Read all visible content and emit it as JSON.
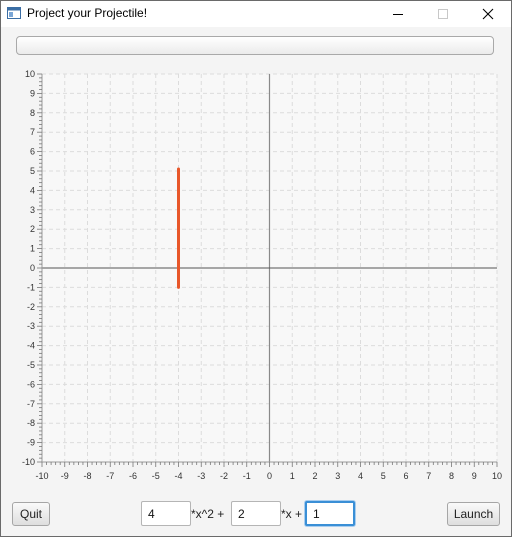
{
  "window": {
    "title": "Project your Projectile!",
    "icons": {
      "app": "app-window-icon",
      "minimize": "minimize-icon",
      "maximize": "maximize-icon",
      "close": "close-icon"
    }
  },
  "progress": {
    "value": 0
  },
  "chart_data": {
    "type": "line",
    "title": "",
    "xlabel": "",
    "ylabel": "",
    "xlim": [
      -10,
      10
    ],
    "ylim": [
      -10,
      10
    ],
    "x_ticks": [
      -10,
      -9,
      -8,
      -7,
      -6,
      -5,
      -4,
      -3,
      -2,
      -1,
      0,
      1,
      2,
      3,
      4,
      5,
      6,
      7,
      8,
      9,
      10
    ],
    "y_ticks": [
      -10,
      -9,
      -8,
      -7,
      -6,
      -5,
      -4,
      -3,
      -2,
      -1,
      0,
      1,
      2,
      3,
      4,
      5,
      6,
      7,
      8,
      9,
      10
    ],
    "grid": true,
    "series": [
      {
        "color": "#e8572a",
        "points": [
          [
            -4,
            -1
          ],
          [
            -4,
            5.1
          ]
        ]
      }
    ]
  },
  "controls": {
    "quit_label": "Quit",
    "launch_label": "Launch",
    "coef_a": "4",
    "coef_b": "2",
    "coef_c": "1",
    "label_x2": "*x^2 +",
    "label_x": "*x +"
  }
}
